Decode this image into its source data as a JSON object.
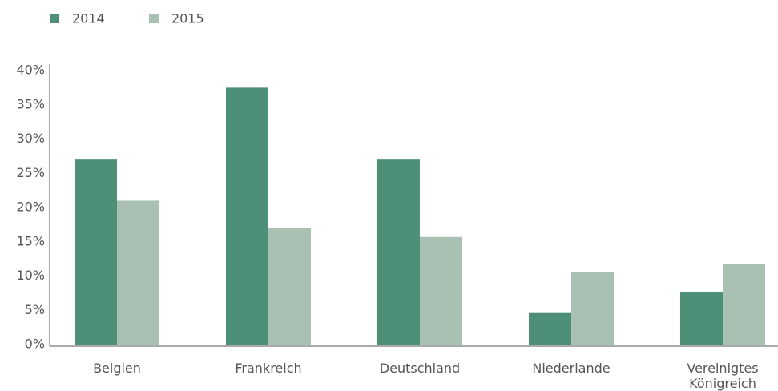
{
  "chart_data": {
    "type": "bar",
    "categories": [
      "Belgien",
      "Frankreich",
      "Deutschland",
      "Niederlande",
      "Vereinigtes Königreich"
    ],
    "series": [
      {
        "name": "2014",
        "color": "#4e8f78",
        "values": [
          27,
          37.5,
          27,
          4.6,
          7.6
        ]
      },
      {
        "name": "2015",
        "color": "#a8c1b3",
        "values": [
          21,
          17,
          15.7,
          10.6,
          11.7
        ]
      }
    ],
    "ylim": [
      0,
      40
    ],
    "yticks": [
      {
        "value": 0,
        "label": "0%"
      },
      {
        "value": 5,
        "label": "5%"
      },
      {
        "value": 10,
        "label": "10%"
      },
      {
        "value": 15,
        "label": "15%"
      },
      {
        "value": 20,
        "label": "20%"
      },
      {
        "value": 25,
        "label": "25%"
      },
      {
        "value": 30,
        "label": "30%"
      },
      {
        "value": 35,
        "label": "35%"
      },
      {
        "value": 40,
        "label": "40%"
      }
    ],
    "legend": "top-left"
  }
}
